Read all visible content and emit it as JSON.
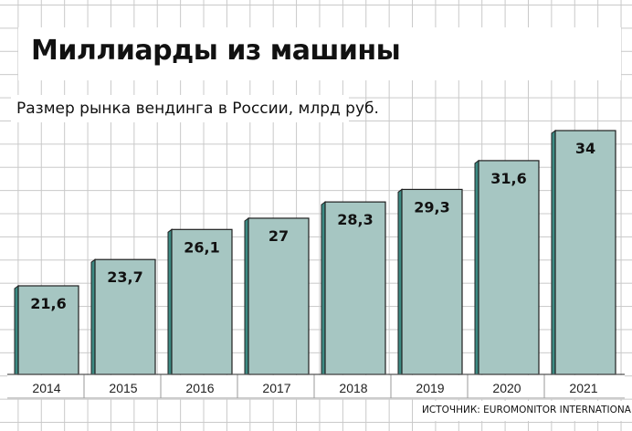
{
  "title": "Миллиарды из машины",
  "subtitle": "Размер рынка вендинга в России, млрд руб.",
  "source": "ИСТОЧНИК: EUROMONITOR INTERNATIONAL",
  "colors": {
    "bar_face": "#a6c6c2",
    "bar_side": "#3d8a83",
    "bar_outline": "#1f1f1f"
  },
  "chart_data": {
    "type": "bar",
    "categories": [
      "2014",
      "2015",
      "2016",
      "2017",
      "2018",
      "2019",
      "2020",
      "2021"
    ],
    "values": [
      21.6,
      23.7,
      26.1,
      27,
      28.3,
      29.3,
      31.6,
      34
    ],
    "value_labels": [
      "21,6",
      "23,7",
      "26,1",
      "27",
      "28,3",
      "29,3",
      "31,6",
      "34"
    ],
    "title": "Миллиарды из машины",
    "subtitle": "Размер рынка вендинга в России, млрд руб.",
    "unit": "млрд руб.",
    "grid": true,
    "legend": "none"
  }
}
